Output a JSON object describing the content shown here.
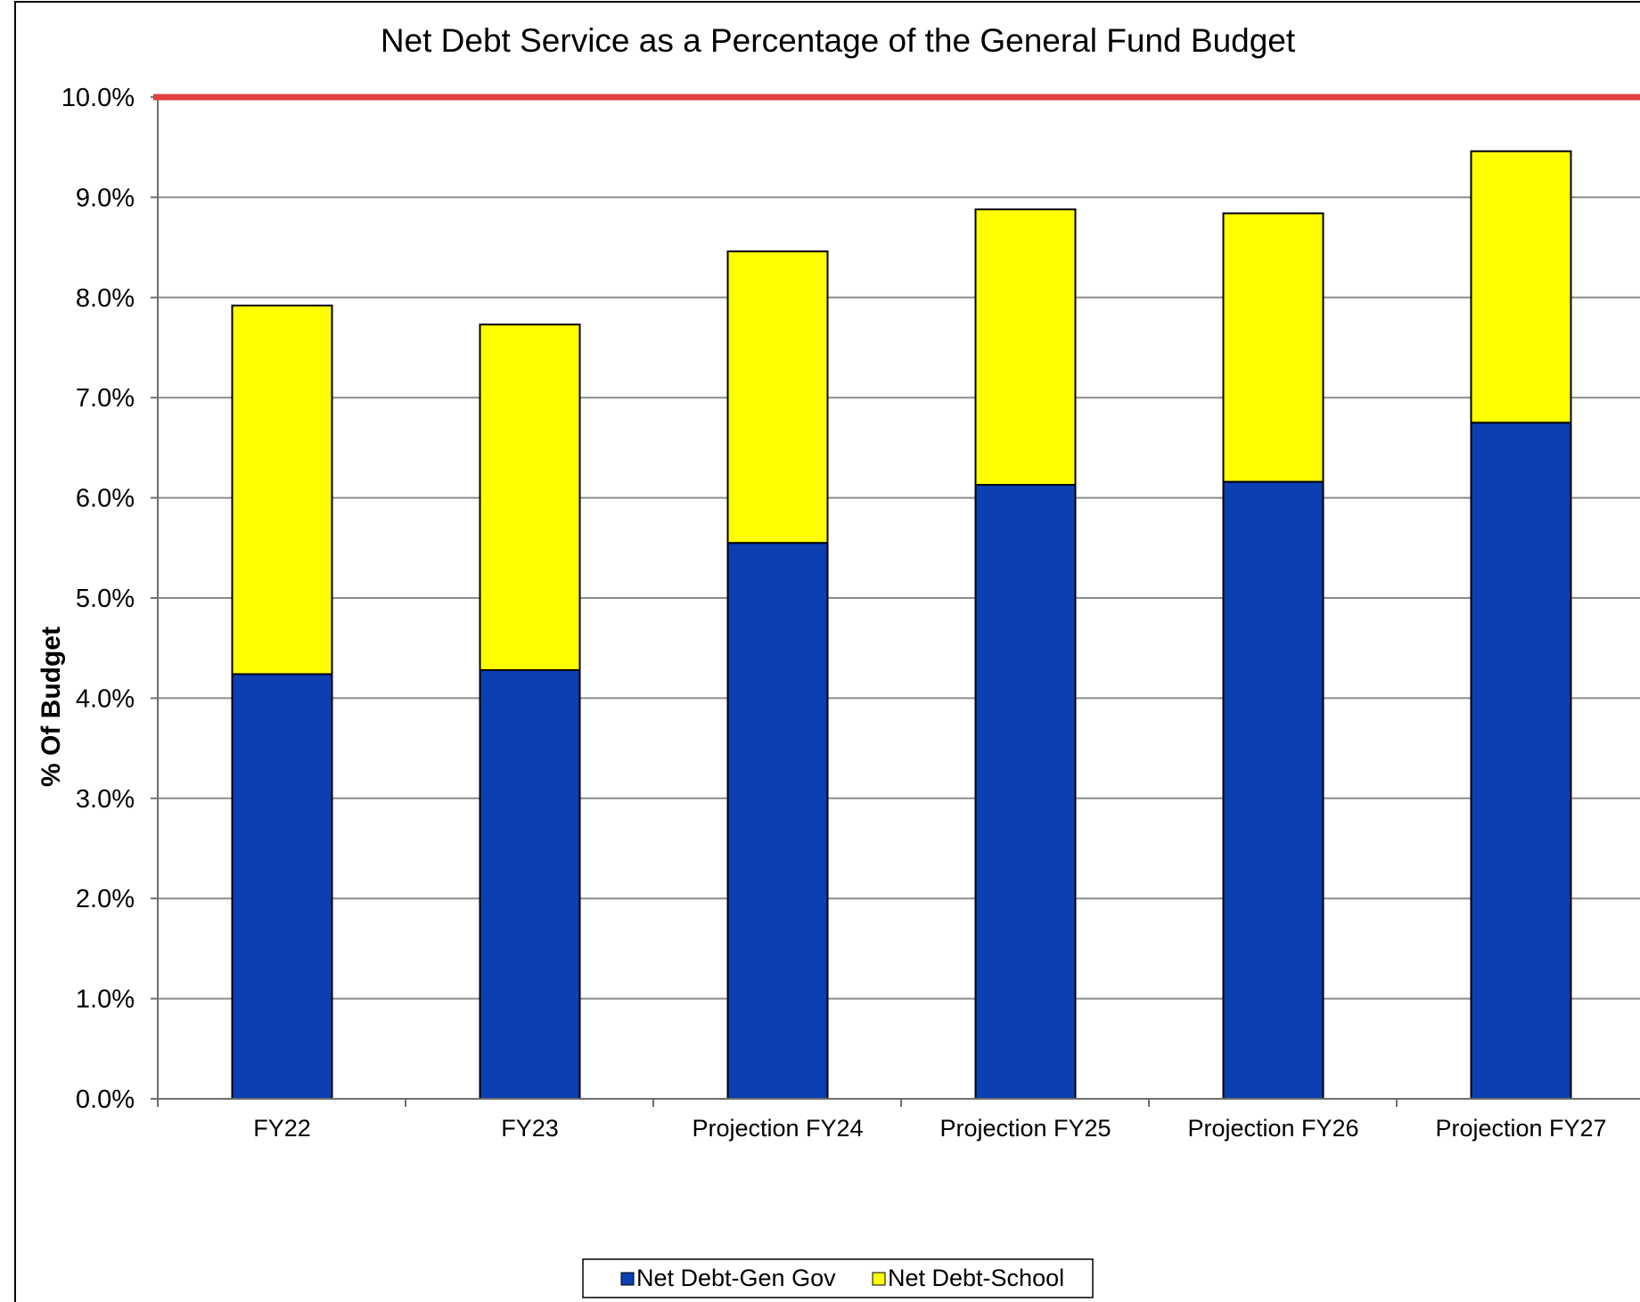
{
  "chart_data": {
    "type": "bar",
    "stacked": true,
    "title": "Net Debt Service as a Percentage of the General Fund Budget",
    "xlabel": "",
    "ylabel": "% Of Budget",
    "ylim": [
      0,
      10
    ],
    "y_tick_step": 1,
    "y_tick_format": "percent_1dp",
    "grid": true,
    "legend_position": "bottom",
    "categories": [
      "FY22",
      "FY23",
      "Projection FY24",
      "Projection FY25",
      "Projection FY26",
      "Projection FY27"
    ],
    "series": [
      {
        "name": "Net Debt-Gen Gov",
        "color": "#0b3fb2",
        "values": [
          4.24,
          4.28,
          5.55,
          6.13,
          6.16,
          6.75
        ]
      },
      {
        "name": "Net Debt-School",
        "color": "#ffff00",
        "values": [
          3.68,
          3.45,
          2.91,
          2.75,
          2.68,
          2.71
        ]
      }
    ],
    "reference_line": {
      "value": 10.0,
      "color": "#e04040"
    }
  }
}
